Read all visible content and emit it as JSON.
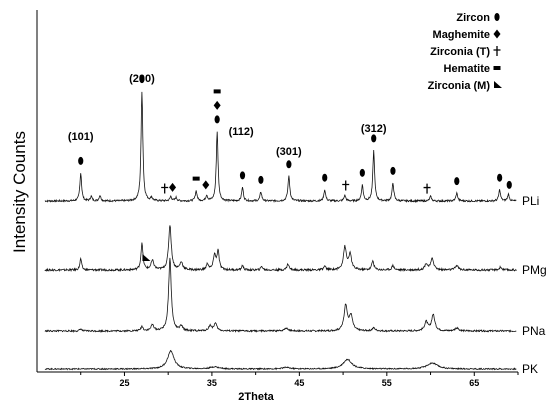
{
  "chart_data": {
    "type": "line",
    "xlabel": "2Theta",
    "ylabel": "Intensity Counts",
    "xlim": [
      15,
      70
    ],
    "xticks": [
      25,
      35,
      45,
      55,
      65
    ],
    "legend_position": "top-right",
    "legend": [
      {
        "label": "Zircon",
        "symbol": "ellipse"
      },
      {
        "label": "Maghemite",
        "symbol": "diamond"
      },
      {
        "label": "Zirconia (T)",
        "symbol": "cross"
      },
      {
        "label": "Hematite",
        "symbol": "rect"
      },
      {
        "label": "Zirconia (M)",
        "symbol": "wedge"
      }
    ],
    "series": [
      {
        "name": "PLi",
        "peaks": [
          {
            "x": 20.0,
            "h": 0.25,
            "w": 0.12
          },
          {
            "x": 21.2,
            "h": 0.04,
            "w": 0.12
          },
          {
            "x": 22.2,
            "h": 0.05,
            "w": 0.12
          },
          {
            "x": 27.0,
            "h": 0.98,
            "w": 0.12
          },
          {
            "x": 28.1,
            "h": 0.03,
            "w": 0.12
          },
          {
            "x": 30.3,
            "h": 0.04,
            "w": 0.12
          },
          {
            "x": 30.9,
            "h": 0.03,
            "w": 0.12
          },
          {
            "x": 33.2,
            "h": 0.09,
            "w": 0.12
          },
          {
            "x": 34.4,
            "h": 0.05,
            "w": 0.12
          },
          {
            "x": 35.6,
            "h": 0.62,
            "w": 0.12
          },
          {
            "x": 38.5,
            "h": 0.12,
            "w": 0.12
          },
          {
            "x": 40.6,
            "h": 0.08,
            "w": 0.12
          },
          {
            "x": 43.8,
            "h": 0.22,
            "w": 0.13
          },
          {
            "x": 47.9,
            "h": 0.1,
            "w": 0.12
          },
          {
            "x": 50.2,
            "h": 0.05,
            "w": 0.12
          },
          {
            "x": 52.2,
            "h": 0.14,
            "w": 0.12
          },
          {
            "x": 53.5,
            "h": 0.45,
            "w": 0.12
          },
          {
            "x": 55.7,
            "h": 0.16,
            "w": 0.12
          },
          {
            "x": 60.0,
            "h": 0.04,
            "w": 0.12
          },
          {
            "x": 63.0,
            "h": 0.07,
            "w": 0.12
          },
          {
            "x": 67.9,
            "h": 0.1,
            "w": 0.12
          },
          {
            "x": 68.9,
            "h": 0.06,
            "w": 0.12
          }
        ]
      },
      {
        "name": "PMg",
        "peaks": [
          {
            "x": 20.0,
            "h": 0.15,
            "w": 0.12
          },
          {
            "x": 27.0,
            "h": 0.35,
            "w": 0.14
          },
          {
            "x": 28.2,
            "h": 0.12,
            "w": 0.2
          },
          {
            "x": 30.2,
            "h": 0.6,
            "w": 0.18
          },
          {
            "x": 31.5,
            "h": 0.1,
            "w": 0.2
          },
          {
            "x": 34.5,
            "h": 0.08,
            "w": 0.15
          },
          {
            "x": 35.3,
            "h": 0.2,
            "w": 0.15
          },
          {
            "x": 35.7,
            "h": 0.25,
            "w": 0.15
          },
          {
            "x": 38.5,
            "h": 0.06,
            "w": 0.12
          },
          {
            "x": 40.7,
            "h": 0.05,
            "w": 0.12
          },
          {
            "x": 43.7,
            "h": 0.08,
            "w": 0.15
          },
          {
            "x": 47.9,
            "h": 0.05,
            "w": 0.15
          },
          {
            "x": 50.2,
            "h": 0.3,
            "w": 0.2
          },
          {
            "x": 50.8,
            "h": 0.2,
            "w": 0.2
          },
          {
            "x": 53.4,
            "h": 0.12,
            "w": 0.15
          },
          {
            "x": 55.7,
            "h": 0.06,
            "w": 0.15
          },
          {
            "x": 59.5,
            "h": 0.08,
            "w": 0.2
          },
          {
            "x": 60.2,
            "h": 0.15,
            "w": 0.2
          },
          {
            "x": 63.0,
            "h": 0.06,
            "w": 0.2
          },
          {
            "x": 68.0,
            "h": 0.04,
            "w": 0.15
          }
        ]
      },
      {
        "name": "PNa",
        "peaks": [
          {
            "x": 20.0,
            "h": 0.03,
            "w": 0.12
          },
          {
            "x": 27.0,
            "h": 0.06,
            "w": 0.15
          },
          {
            "x": 28.2,
            "h": 0.08,
            "w": 0.2
          },
          {
            "x": 30.2,
            "h": 0.98,
            "w": 0.18
          },
          {
            "x": 31.5,
            "h": 0.06,
            "w": 0.2
          },
          {
            "x": 34.8,
            "h": 0.07,
            "w": 0.2
          },
          {
            "x": 35.4,
            "h": 0.1,
            "w": 0.2
          },
          {
            "x": 43.5,
            "h": 0.04,
            "w": 0.25
          },
          {
            "x": 50.3,
            "h": 0.35,
            "w": 0.22
          },
          {
            "x": 50.9,
            "h": 0.2,
            "w": 0.22
          },
          {
            "x": 53.5,
            "h": 0.04,
            "w": 0.2
          },
          {
            "x": 59.5,
            "h": 0.12,
            "w": 0.22
          },
          {
            "x": 60.3,
            "h": 0.22,
            "w": 0.22
          },
          {
            "x": 63.0,
            "h": 0.04,
            "w": 0.25
          }
        ]
      },
      {
        "name": "PK",
        "peaks": [
          {
            "x": 30.3,
            "h": 0.6,
            "w": 0.45
          },
          {
            "x": 35.3,
            "h": 0.07,
            "w": 0.6
          },
          {
            "x": 43.5,
            "h": 0.05,
            "w": 0.5
          },
          {
            "x": 50.5,
            "h": 0.32,
            "w": 0.6
          },
          {
            "x": 60.2,
            "h": 0.2,
            "w": 0.7
          }
        ]
      }
    ],
    "hkl_labels": [
      {
        "text": "(101)",
        "x": 20.0
      },
      {
        "text": "(200)",
        "x": 27.0
      },
      {
        "text": "(112)",
        "x": 35.6
      },
      {
        "text": "(301)",
        "x": 43.8
      },
      {
        "text": "(312)",
        "x": 53.5
      }
    ],
    "phase_markers": [
      {
        "symbol": "ellipse",
        "x": 20.0
      },
      {
        "symbol": "ellipse",
        "x": 27.0
      },
      {
        "symbol": "cross",
        "x": 29.6
      },
      {
        "symbol": "diamond",
        "x": 30.5
      },
      {
        "symbol": "rect",
        "x": 33.2
      },
      {
        "symbol": "diamond",
        "x": 34.3
      },
      {
        "symbol": "ellipse",
        "x": 35.6
      },
      {
        "symbol": "diamond",
        "x": 35.6
      },
      {
        "symbol": "rect",
        "x": 35.6
      },
      {
        "symbol": "ellipse",
        "x": 38.5
      },
      {
        "symbol": "ellipse",
        "x": 40.6
      },
      {
        "symbol": "ellipse",
        "x": 43.8
      },
      {
        "symbol": "ellipse",
        "x": 47.9
      },
      {
        "symbol": "cross",
        "x": 50.3
      },
      {
        "symbol": "ellipse",
        "x": 52.2
      },
      {
        "symbol": "ellipse",
        "x": 53.5
      },
      {
        "symbol": "ellipse",
        "x": 55.7
      },
      {
        "symbol": "cross",
        "x": 59.6
      },
      {
        "symbol": "ellipse",
        "x": 63.0
      },
      {
        "symbol": "ellipse",
        "x": 67.9
      },
      {
        "symbol": "ellipse",
        "x": 69.0
      },
      {
        "symbol": "wedge",
        "x": 27.4
      }
    ]
  }
}
